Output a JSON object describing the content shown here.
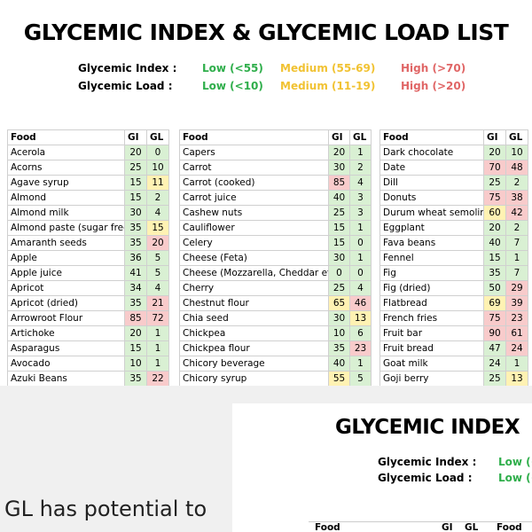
{
  "title": "GLYCEMIC INDEX & GLYCEMIC LOAD LIST",
  "legend": [
    {
      "label": "Glycemic Index :",
      "levels": [
        {
          "text": "Low (<55)",
          "color": "#2fae4b"
        },
        {
          "text": "Medium (55-69)",
          "color": "#f1c232"
        },
        {
          "text": "High (>70)",
          "color": "#e06666"
        }
      ]
    },
    {
      "label": "Glycemic Load :",
      "levels": [
        {
          "text": "Low (<10)",
          "color": "#2fae4b"
        },
        {
          "text": "Medium (11-19)",
          "color": "#f1c232"
        },
        {
          "text": "High (>20)",
          "color": "#e06666"
        }
      ]
    }
  ],
  "tables": [
    {
      "headers": [
        "Food",
        "GI",
        "GL"
      ],
      "rows": [
        [
          "Acerola",
          20,
          0,
          "#d9f0d3",
          "#d9f0d3"
        ],
        [
          "Acorns",
          25,
          10,
          "#d9f0d3",
          "#d9f0d3"
        ],
        [
          "Agave syrup",
          15,
          11,
          "#d9f0d3",
          "#fff2b3"
        ],
        [
          "Almond",
          15,
          2,
          "#d9f0d3",
          "#d9f0d3"
        ],
        [
          "Almond milk",
          30,
          4,
          "#d9f0d3",
          "#d9f0d3"
        ],
        [
          "Almond paste (sugar free)",
          35,
          15,
          "#d9f0d3",
          "#fff2b3"
        ],
        [
          "Amaranth seeds",
          35,
          20,
          "#d9f0d3",
          "#f8cbcb"
        ],
        [
          "Apple",
          36,
          5,
          "#d9f0d3",
          "#d9f0d3"
        ],
        [
          "Apple juice",
          41,
          5,
          "#d9f0d3",
          "#d9f0d3"
        ],
        [
          "Apricot",
          34,
          4,
          "#d9f0d3",
          "#d9f0d3"
        ],
        [
          "Apricot (dried)",
          35,
          21,
          "#d9f0d3",
          "#f8cbcb"
        ],
        [
          "Arrowroot Flour",
          85,
          72,
          "#f8cbcb",
          "#f8cbcb"
        ],
        [
          "Artichoke",
          20,
          1,
          "#d9f0d3",
          "#d9f0d3"
        ],
        [
          "Asparagus",
          15,
          1,
          "#d9f0d3",
          "#d9f0d3"
        ],
        [
          "Avocado",
          10,
          1,
          "#d9f0d3",
          "#d9f0d3"
        ],
        [
          "Azuki Beans",
          35,
          22,
          "#d9f0d3",
          "#f8cbcb"
        ]
      ]
    },
    {
      "headers": [
        "Food",
        "GI",
        "GL"
      ],
      "rows": [
        [
          "Capers",
          20,
          1,
          "#d9f0d3",
          "#d9f0d3"
        ],
        [
          "Carrot",
          30,
          2,
          "#d9f0d3",
          "#d9f0d3"
        ],
        [
          "Carrot (cooked)",
          85,
          4,
          "#f8cbcb",
          "#d9f0d3"
        ],
        [
          "Carrot juice",
          40,
          3,
          "#d9f0d3",
          "#d9f0d3"
        ],
        [
          "Cashew nuts",
          25,
          3,
          "#d9f0d3",
          "#d9f0d3"
        ],
        [
          "Cauliflower",
          15,
          1,
          "#d9f0d3",
          "#d9f0d3"
        ],
        [
          "Celery",
          15,
          0,
          "#d9f0d3",
          "#d9f0d3"
        ],
        [
          "Cheese (Feta)",
          30,
          1,
          "#d9f0d3",
          "#d9f0d3"
        ],
        [
          "Cheese (Mozzarella, Cheddar etc.)",
          0,
          0,
          "#d9f0d3",
          "#d9f0d3"
        ],
        [
          "Cherry",
          25,
          4,
          "#d9f0d3",
          "#d9f0d3"
        ],
        [
          "Chestnut flour",
          65,
          46,
          "#fff2b3",
          "#f8cbcb"
        ],
        [
          "Chia seed",
          30,
          13,
          "#d9f0d3",
          "#fff2b3"
        ],
        [
          "Chickpea",
          10,
          6,
          "#d9f0d3",
          "#d9f0d3"
        ],
        [
          "Chickpea flour",
          35,
          23,
          "#d9f0d3",
          "#f8cbcb"
        ],
        [
          "Chicory beverage",
          40,
          1,
          "#d9f0d3",
          "#d9f0d3"
        ],
        [
          "Chicory syrup",
          55,
          5,
          "#fff2b3",
          "#d9f0d3"
        ]
      ]
    },
    {
      "headers": [
        "Food",
        "GI",
        "GL"
      ],
      "rows": [
        [
          "Dark chocolate",
          20,
          10,
          "#d9f0d3",
          "#d9f0d3"
        ],
        [
          "Date",
          70,
          48,
          "#f8cbcb",
          "#f8cbcb"
        ],
        [
          "Dill",
          25,
          2,
          "#d9f0d3",
          "#d9f0d3"
        ],
        [
          "Donuts",
          75,
          38,
          "#f8cbcb",
          "#f8cbcb"
        ],
        [
          "Durum wheat semolina",
          60,
          42,
          "#fff2b3",
          "#f8cbcb"
        ],
        [
          "Eggplant",
          20,
          2,
          "#d9f0d3",
          "#d9f0d3"
        ],
        [
          "Fava beans",
          40,
          7,
          "#d9f0d3",
          "#d9f0d3"
        ],
        [
          "Fennel",
          15,
          1,
          "#d9f0d3",
          "#d9f0d3"
        ],
        [
          "Fig",
          35,
          7,
          "#d9f0d3",
          "#d9f0d3"
        ],
        [
          "Fig (dried)",
          50,
          29,
          "#d9f0d3",
          "#f8cbcb"
        ],
        [
          "Flatbread",
          69,
          39,
          "#fff2b3",
          "#f8cbcb"
        ],
        [
          "French fries",
          75,
          23,
          "#f8cbcb",
          "#f8cbcb"
        ],
        [
          "Fruit bar",
          90,
          61,
          "#f8cbcb",
          "#f8cbcb"
        ],
        [
          "Fruit bread",
          47,
          24,
          "#d9f0d3",
          "#f8cbcb"
        ],
        [
          "Goat milk",
          24,
          1,
          "#d9f0d3",
          "#d9f0d3"
        ],
        [
          "Goji berry",
          25,
          13,
          "#d9f0d3",
          "#fff2b3"
        ]
      ]
    }
  ],
  "overlay": {
    "caption": "GL has potential to",
    "title": "GLYCEMIC INDEX",
    "legend": [
      {
        "label": "Glycemic Index :",
        "low": "Low (<"
      },
      {
        "label": "Glycemic Load :",
        "low": "Low (<"
      }
    ],
    "headers": [
      "Food",
      "GI",
      "GL",
      "Food"
    ]
  }
}
